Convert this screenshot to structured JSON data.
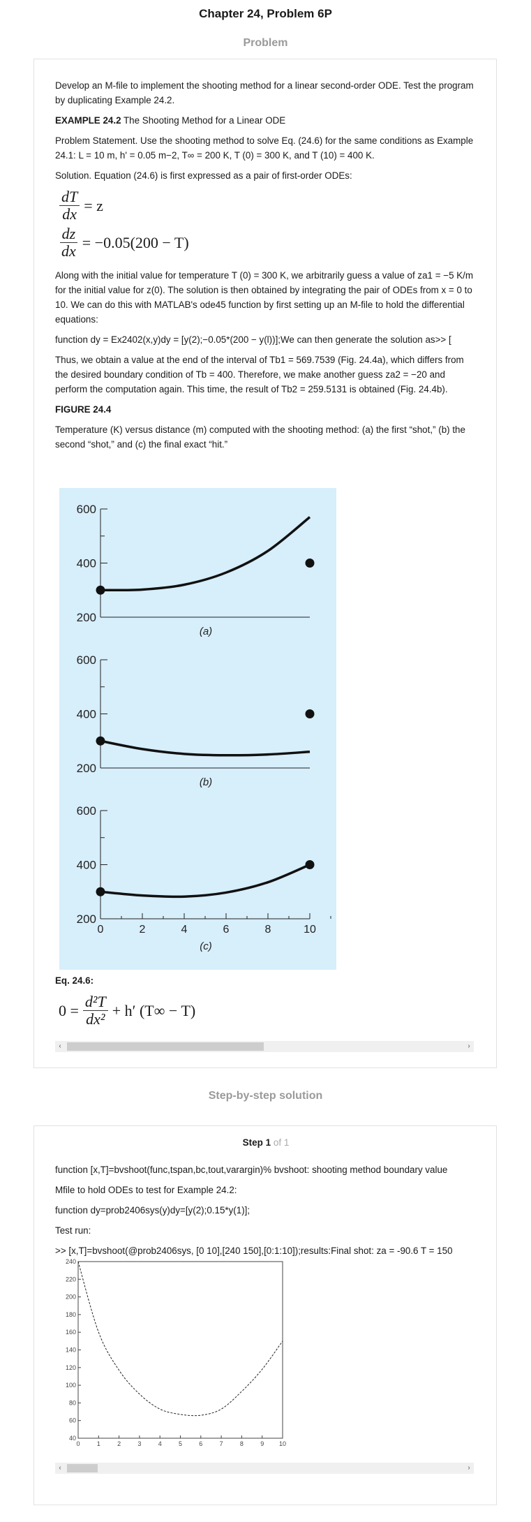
{
  "page_title": "Chapter 24, Problem 6P",
  "problem_section_title": "Problem",
  "problem": {
    "intro": "Develop an M-file to implement the shooting method for a linear second-order ODE. Test the program by duplicating Example 24.2.",
    "example_label": "EXAMPLE 24.2",
    "example_title": " The Shooting Method for a Linear ODE",
    "statement": "Problem Statement. Use the shooting method to solve Eq. (24.6) for the same conditions as Example 24.1: L = 10 m, h' = 0.05 m−2, T∞ = 200 K, T (0) = 300 K, and T (10) = 400 K.",
    "solution": "Solution. Equation (24.6) is first expressed as a pair of first-order ODEs:",
    "eq1": {
      "num": "dT",
      "den": "dx",
      "rhs": "= z"
    },
    "eq2": {
      "num": "dz",
      "den": "dx",
      "rhs": "= −0.05(200 − T)"
    },
    "para_initial": "Along with the initial value for temperature T (0) = 300 K, we arbitrarily guess a value of za1 = −5 K/m for the initial value for z(0). The solution is then obtained by integrating the pair of ODEs from x = 0 to 10. We can do this with MATLAB's ode45 function by first setting up an M-file to hold the differential equations:",
    "code_line": "function dy = Ex2402(x,y)dy = [y(2);−0.05*(200 − y(l))];We can then generate the solution as>> [",
    "para_result": "Thus, we obtain a value at the end of the interval of Tb1 = 569.7539 (Fig. 24.4a), which differs from the desired boundary condition of Tb = 400. Therefore, we make another guess za2 = −20 and perform the computation again. This time, the result of Tb2 = 259.5131 is obtained (Fig. 24.4b).",
    "figure_label": "FIGURE 24.4",
    "figure_caption": "Temperature (K) versus distance (m) computed with the shooting method: (a) the first “shot,” (b) the second “shot,” and (c) the final exact “hit.”",
    "eq_label": "Eq. 24.6:",
    "eq_lhs": "0 =",
    "eq_num": "d²T",
    "eq_den": "dx²",
    "eq_rhs": "+ h′ (T∞ − T)"
  },
  "figure": {
    "y_ticks": [
      "600",
      "400",
      "200"
    ],
    "x_ticks": [
      "0",
      "2",
      "4",
      "6",
      "8",
      "10"
    ],
    "panel_labels": [
      "(a)",
      "(b)",
      "(c)"
    ]
  },
  "chart_data": [
    {
      "type": "line",
      "title": "(a)",
      "xlim": [
        0,
        10
      ],
      "ylim": [
        200,
        600
      ],
      "series": [
        {
          "x": [
            0,
            2,
            4,
            6,
            8,
            10
          ],
          "values": [
            300,
            302,
            320,
            365,
            445,
            570
          ]
        }
      ],
      "markers": [
        {
          "x": 0,
          "y": 300
        },
        {
          "x": 10,
          "y": 400
        }
      ]
    },
    {
      "type": "line",
      "title": "(b)",
      "xlim": [
        0,
        10
      ],
      "ylim": [
        200,
        600
      ],
      "series": [
        {
          "x": [
            0,
            2,
            4,
            6,
            8,
            10
          ],
          "values": [
            300,
            270,
            252,
            247,
            250,
            260
          ]
        }
      ],
      "markers": [
        {
          "x": 0,
          "y": 300
        },
        {
          "x": 10,
          "y": 400
        }
      ]
    },
    {
      "type": "line",
      "title": "(c)",
      "xlim": [
        0,
        10
      ],
      "ylim": [
        200,
        600
      ],
      "series": [
        {
          "x": [
            0,
            2,
            4,
            6,
            8,
            10
          ],
          "values": [
            300,
            286,
            282,
            297,
            335,
            400
          ]
        }
      ],
      "markers": [
        {
          "x": 0,
          "y": 300
        },
        {
          "x": 10,
          "y": 400
        }
      ]
    },
    {
      "type": "line",
      "title": "",
      "xlim": [
        0,
        10
      ],
      "ylim": [
        40,
        240
      ],
      "y_ticks": [
        240,
        220,
        200,
        180,
        160,
        140,
        120,
        100,
        80,
        60,
        40
      ],
      "x_ticks": [
        0,
        1,
        2,
        3,
        4,
        5,
        6,
        7,
        8,
        9,
        10
      ],
      "series": [
        {
          "x": [
            0,
            1,
            2,
            3,
            4,
            5,
            6,
            7,
            8,
            9,
            10
          ],
          "values": [
            240,
            160,
            117,
            90,
            73,
            67,
            66,
            73,
            93,
            118,
            150
          ]
        }
      ]
    }
  ],
  "solution_section_title": "Step-by-step solution",
  "step": {
    "label": "Step 1",
    "of": " of 1",
    "line1": "function [x,T]=bvshoot(func,tspan,bc,tout,varargin)% bvshoot: shooting method boundary value",
    "line2": "Mfile to hold ODEs to test for Example 24.2:",
    "line3": "function dy=prob2406sys(y)dy=[y(2);0.15*y(1)];",
    "line4": "Test run:",
    "line5": ">> [x,T]=bvshoot(@prob2406sys, [0 10],[240 150],[0:1:10]);results:Final shot: za = -90.6 T = 150"
  },
  "scroll_arrows": {
    "left": "‹",
    "right": "›"
  }
}
